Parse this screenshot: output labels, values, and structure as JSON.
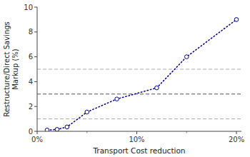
{
  "chart_data": {
    "type": "line",
    "x": [
      0.01,
      0.02,
      0.03,
      0.05,
      0.08,
      0.12,
      0.15,
      0.2
    ],
    "values": [
      0.1,
      0.15,
      0.35,
      1.55,
      2.6,
      3.5,
      6.0,
      9.0
    ],
    "color": "#00008B",
    "marker": "circle",
    "line_style": "dotted",
    "reference_lines": [
      {
        "value": 1.0,
        "color": "#aaaaaa",
        "line_style": "dashed"
      },
      {
        "value": 3.0,
        "color": "#555555",
        "line_style": "dashed"
      },
      {
        "value": 5.0,
        "color": "#aaaaaa",
        "line_style": "dashed"
      }
    ],
    "xlim": [
      0,
      0.205
    ],
    "ylim": [
      0,
      10
    ],
    "xticks": [
      {
        "value": 0.0,
        "label": "0%"
      },
      {
        "value": 0.1,
        "label": "10%"
      },
      {
        "value": 0.2,
        "label": "20%"
      }
    ],
    "xticks_minor": [
      0.05,
      0.15
    ],
    "yticks": [
      0,
      2,
      4,
      6,
      8,
      10
    ],
    "xlabel": "Transport Cost reduction",
    "ylabel": "Restructure/Direct Savings\nMarkup (%)",
    "grid": false
  }
}
